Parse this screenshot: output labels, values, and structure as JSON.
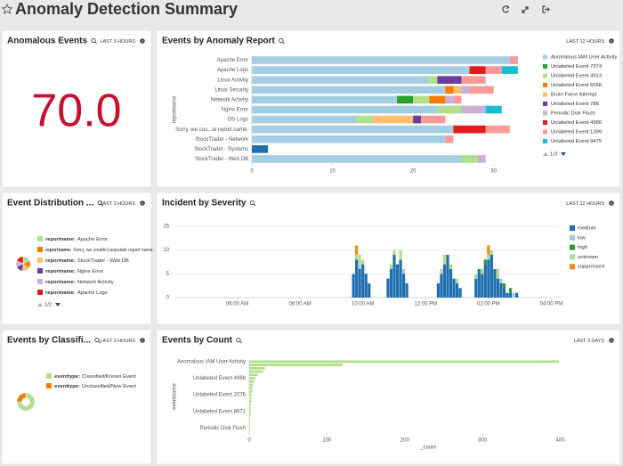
{
  "header": {
    "title": "Anomaly Detection Summary"
  },
  "panels": [
    {
      "title": "Anomalous Events",
      "time_range": "LAST 3 HOURS",
      "single_value": "70.0"
    },
    {
      "title": "Events by Anomaly Report",
      "time_range": "LAST 12 HOURS",
      "chart_data": {
        "type": "bar",
        "orientation": "horizontal",
        "stacked": true,
        "y_label": "reportname",
        "categories": [
          "Apache Error",
          "Apache Logs",
          "Linux Activity",
          "Linux Security",
          "Network Activity",
          "Nginx Error",
          "OS Logs",
          "Sorry, we cou...te report name.",
          "StockTrader - Network",
          "StockTrader - Systems",
          "StockTrader - Web DB"
        ],
        "xlim": [
          0,
          35
        ],
        "xticks": [
          0,
          10,
          20,
          30
        ],
        "legend": "right",
        "legend_page": "1/3",
        "series": [
          {
            "name": "Anomalous IAM User Activity",
            "color": "#a6cee3",
            "values": [
              32,
              27,
              22,
              24,
              18,
              23,
              13,
              25,
              24,
              0,
              26
            ]
          },
          {
            "name": "Unlabeled Event 7374",
            "color": "#2ca02c",
            "values": [
              0,
              0,
              0,
              0,
              2,
              0,
              0,
              0,
              0,
              0,
              0
            ]
          },
          {
            "name": "Unlabeled Event 4913",
            "color": "#b3de8c",
            "values": [
              0,
              0,
              1,
              0,
              2,
              3,
              2,
              0,
              0,
              0,
              2
            ]
          },
          {
            "name": "Unlabeled Event 6556",
            "color": "#f57c00",
            "values": [
              0,
              0,
              0,
              1,
              2,
              0,
              0,
              0,
              0,
              0,
              0
            ]
          },
          {
            "name": "Brute Force Attempt",
            "color": "#fdbf6f",
            "values": [
              0,
              0,
              0,
              1,
              0,
              0,
              5,
              0,
              0,
              0,
              0
            ]
          },
          {
            "name": "Unlabeled Event 788",
            "color": "#6a3d9a",
            "values": [
              0,
              0,
              3,
              0,
              0,
              0,
              1,
              0,
              0,
              0,
              0
            ]
          },
          {
            "name": "Periodic Disk Flush",
            "color": "#cab2d6",
            "values": [
              0,
              0,
              0,
              1,
              1,
              3,
              0,
              0,
              0,
              0,
              1
            ]
          },
          {
            "name": "Unlabeled Event 4986",
            "color": "#e31a1c",
            "values": [
              0,
              2,
              0,
              0,
              0,
              0,
              0,
              4,
              0,
              0,
              0
            ]
          },
          {
            "name": "Unlabeled Event 1399",
            "color": "#fb9a99",
            "values": [
              1,
              2,
              3,
              3,
              1,
              0,
              3,
              3,
              1,
              0,
              0
            ]
          },
          {
            "name": "Unlabeled Event 9475",
            "color": "#17becf",
            "values": [
              0,
              2,
              0,
              0,
              0,
              2,
              0,
              0,
              0,
              0,
              0
            ]
          },
          {
            "name": null,
            "color": "#1f6fb0",
            "values": [
              0,
              0,
              0,
              0,
              0,
              0,
              0,
              0,
              0,
              2,
              0
            ]
          }
        ]
      }
    },
    {
      "title": "Event Distribution ...",
      "time_range": "LAST 3 HOURS",
      "chart_data": {
        "type": "pie",
        "legend_key": "reportname:",
        "legend_page": "1/2",
        "categories": [
          "Apache Error",
          "Sorry, we couldn't populate report name.",
          "StockTrader - Web DB",
          "Nginx Error",
          "Network Activity",
          "Apache Logs"
        ],
        "values": [
          33,
          33,
          29,
          31,
          26,
          33
        ],
        "colors": [
          "#b3de8c",
          "#f57c00",
          "#fdbf6f",
          "#6a3d9a",
          "#cab2d6",
          "#e31a1c"
        ]
      }
    },
    {
      "title": "Incident by Severity",
      "time_range": "LAST 12 HOURS",
      "chart_data": {
        "type": "bar",
        "stacked": true,
        "legend": "right",
        "grid": true,
        "x": [
          9.7,
          9.8,
          9.9,
          10,
          10.1,
          10.2,
          10.8,
          10.9,
          11,
          11.1,
          11.2,
          11.3,
          11.4,
          12.4,
          12.5,
          12.6,
          12.7,
          12.8,
          12.9,
          13,
          13.1,
          13.6,
          13.7,
          13.8,
          13.9,
          14,
          14.1,
          14.2,
          14.3,
          14.4,
          14.5,
          14.6,
          14.7,
          14.8,
          14.9
        ],
        "xlim": [
          4,
          16.3
        ],
        "xticks": [
          {
            "value": 6,
            "label": "06:00 AM"
          },
          {
            "value": 8,
            "label": "08:00 AM"
          },
          {
            "value": 10,
            "label": "10:00 AM"
          },
          {
            "value": 12,
            "label": "12:00 PM"
          },
          {
            "value": 14,
            "label": "02:00 PM"
          },
          {
            "value": 16,
            "label": "04:00 PM"
          }
        ],
        "ylim": [
          0,
          15
        ],
        "yticks": [
          0,
          5,
          10,
          15
        ],
        "series": [
          {
            "name": "medium",
            "color": "#1f6fb0",
            "values": [
              5,
              8,
              6,
              7,
              5,
              3,
              4,
              6,
              9,
              7,
              8,
              5,
              3,
              3,
              5,
              7,
              9,
              6,
              4,
              3,
              2,
              4,
              6,
              5,
              7,
              8,
              9,
              6,
              4,
              3,
              2,
              1,
              1,
              0,
              1
            ]
          },
          {
            "name": "low",
            "color": "#a9c9e2",
            "values": [
              0,
              0,
              1,
              0,
              0,
              0,
              0,
              0,
              0,
              0,
              0,
              1,
              0,
              0,
              0,
              0,
              0,
              0,
              0,
              0,
              0,
              0,
              0,
              0,
              0,
              0,
              0,
              0,
              0,
              1,
              0,
              0,
              0,
              1,
              0
            ]
          },
          {
            "name": "high",
            "color": "#2a9a2a",
            "values": [
              0,
              0,
              0,
              0,
              0,
              0,
              0,
              0,
              0,
              0,
              0,
              0,
              0,
              0,
              0,
              0,
              0,
              0,
              0,
              0,
              0,
              0,
              0,
              0,
              1,
              0,
              0,
              0,
              0,
              0,
              1,
              0,
              1,
              0,
              0
            ]
          },
          {
            "name": "unknown",
            "color": "#b3de8c",
            "values": [
              0,
              1,
              2,
              1,
              0,
              0,
              0,
              1,
              1,
              0,
              2,
              0,
              0,
              0,
              1,
              2,
              0,
              1,
              0,
              1,
              0,
              1,
              0,
              1,
              0,
              1,
              1,
              0,
              2,
              0,
              0,
              0,
              0,
              0,
              0
            ]
          },
          {
            "name": "suppressed",
            "color": "#f28c1c",
            "values": [
              0,
              2,
              0,
              0,
              0,
              0,
              0,
              0,
              0,
              0,
              0,
              0,
              0,
              0,
              0,
              0,
              0,
              0,
              0,
              0,
              0,
              0,
              0,
              0,
              0,
              2,
              0,
              0,
              0,
              0,
              0,
              0,
              0,
              0,
              0
            ]
          }
        ]
      }
    },
    {
      "title": "Events by Classifi...",
      "time_range": "LAST 3 HOURS",
      "chart_data": {
        "type": "pie",
        "donut": true,
        "legend_key": "eventtype:",
        "categories": [
          "Classified/Known Event",
          "Unclassified/New Event"
        ],
        "values": [
          75,
          25
        ],
        "colors": [
          "#b3de8c",
          "#f57c00"
        ]
      }
    },
    {
      "title": "Events by Count",
      "time_range": "LAST 3 DAYS",
      "chart_data": {
        "type": "bar",
        "orientation": "horizontal",
        "x_label": "_count",
        "y_label": "eventname",
        "categories": [
          "Anomalous IAM User Activity",
          null,
          null,
          null,
          null,
          "Unlabeled Event 4986",
          null,
          null,
          null,
          null,
          "Unlabeled Event 2076",
          null,
          null,
          null,
          null,
          "Unlabeled Event 8971",
          null,
          null,
          null,
          null,
          "Periodic Disk Flush",
          null
        ],
        "values": [
          398,
          120,
          20,
          18,
          11,
          8,
          6,
          5,
          4,
          4,
          3,
          3,
          3,
          2,
          2,
          2,
          2,
          1,
          1,
          1,
          1,
          1
        ],
        "color": "#b3de8c",
        "xlim": [
          0,
          460
        ],
        "xticks": [
          0,
          100,
          200,
          300,
          400
        ]
      }
    }
  ]
}
